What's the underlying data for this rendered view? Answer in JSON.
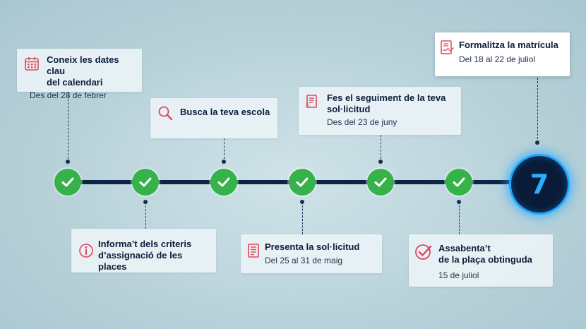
{
  "steps_top": [
    {
      "title_line1": "Coneix les dates clau",
      "title_line2": "del calendari",
      "subtitle": "Des del 28 de febrer",
      "icon": "calendar-icon"
    },
    {
      "title_line1": "Busca la teva escola",
      "icon": "search-icon"
    },
    {
      "title_line1": "Fes el seguiment de la teva",
      "title_line2": "sol·licitud",
      "subtitle": "Des del 23 de juny",
      "icon": "document-icon"
    },
    {
      "title_line1": "Formalitza la matrícula",
      "subtitle": "Del 18 al 22 de juliol",
      "icon": "signed-document-icon"
    }
  ],
  "steps_bottom": [
    {
      "title_line1": "Informa’t dels criteris",
      "title_line2": "d’assignació de les places",
      "icon": "info-icon"
    },
    {
      "title_line1": "Presenta la sol·licitud",
      "subtitle": "Del 25 al 31 de maig",
      "icon": "form-icon"
    },
    {
      "title_line1": "Assabenta’t",
      "title_line2": "de la plaça obtinguda",
      "subtitle": "15 de juliol",
      "icon": "check-circle-icon"
    }
  ],
  "current_step": "7",
  "colors": {
    "accent_icon": "#e2455a",
    "check_green": "#35b34a",
    "track": "#0f2444",
    "final_glow": "#1ea7ff"
  }
}
